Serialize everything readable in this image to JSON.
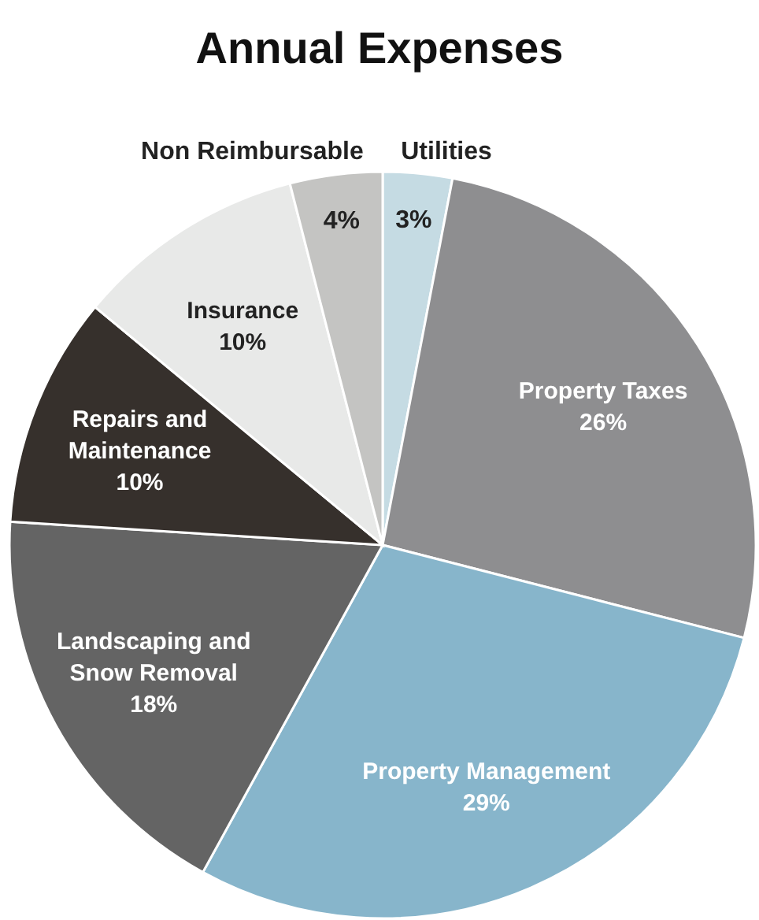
{
  "chart_data": {
    "type": "pie",
    "title": "Annual Expenses",
    "categories": [
      "Utilities",
      "Property Taxes",
      "Property Management",
      "Landscaping and Snow Removal",
      "Repairs and Maintenance",
      "Insurance",
      "Non Reimbursable"
    ],
    "values": [
      3,
      26,
      29,
      18,
      10,
      10,
      4
    ],
    "value_labels": [
      "3%",
      "26%",
      "29%",
      "18%",
      "10%",
      "10%",
      "4%"
    ],
    "colors": [
      "#c5dbe3",
      "#8e8e90",
      "#87b5cb",
      "#646464",
      "#36302c",
      "#e8e9e8",
      "#c4c4c2"
    ]
  }
}
